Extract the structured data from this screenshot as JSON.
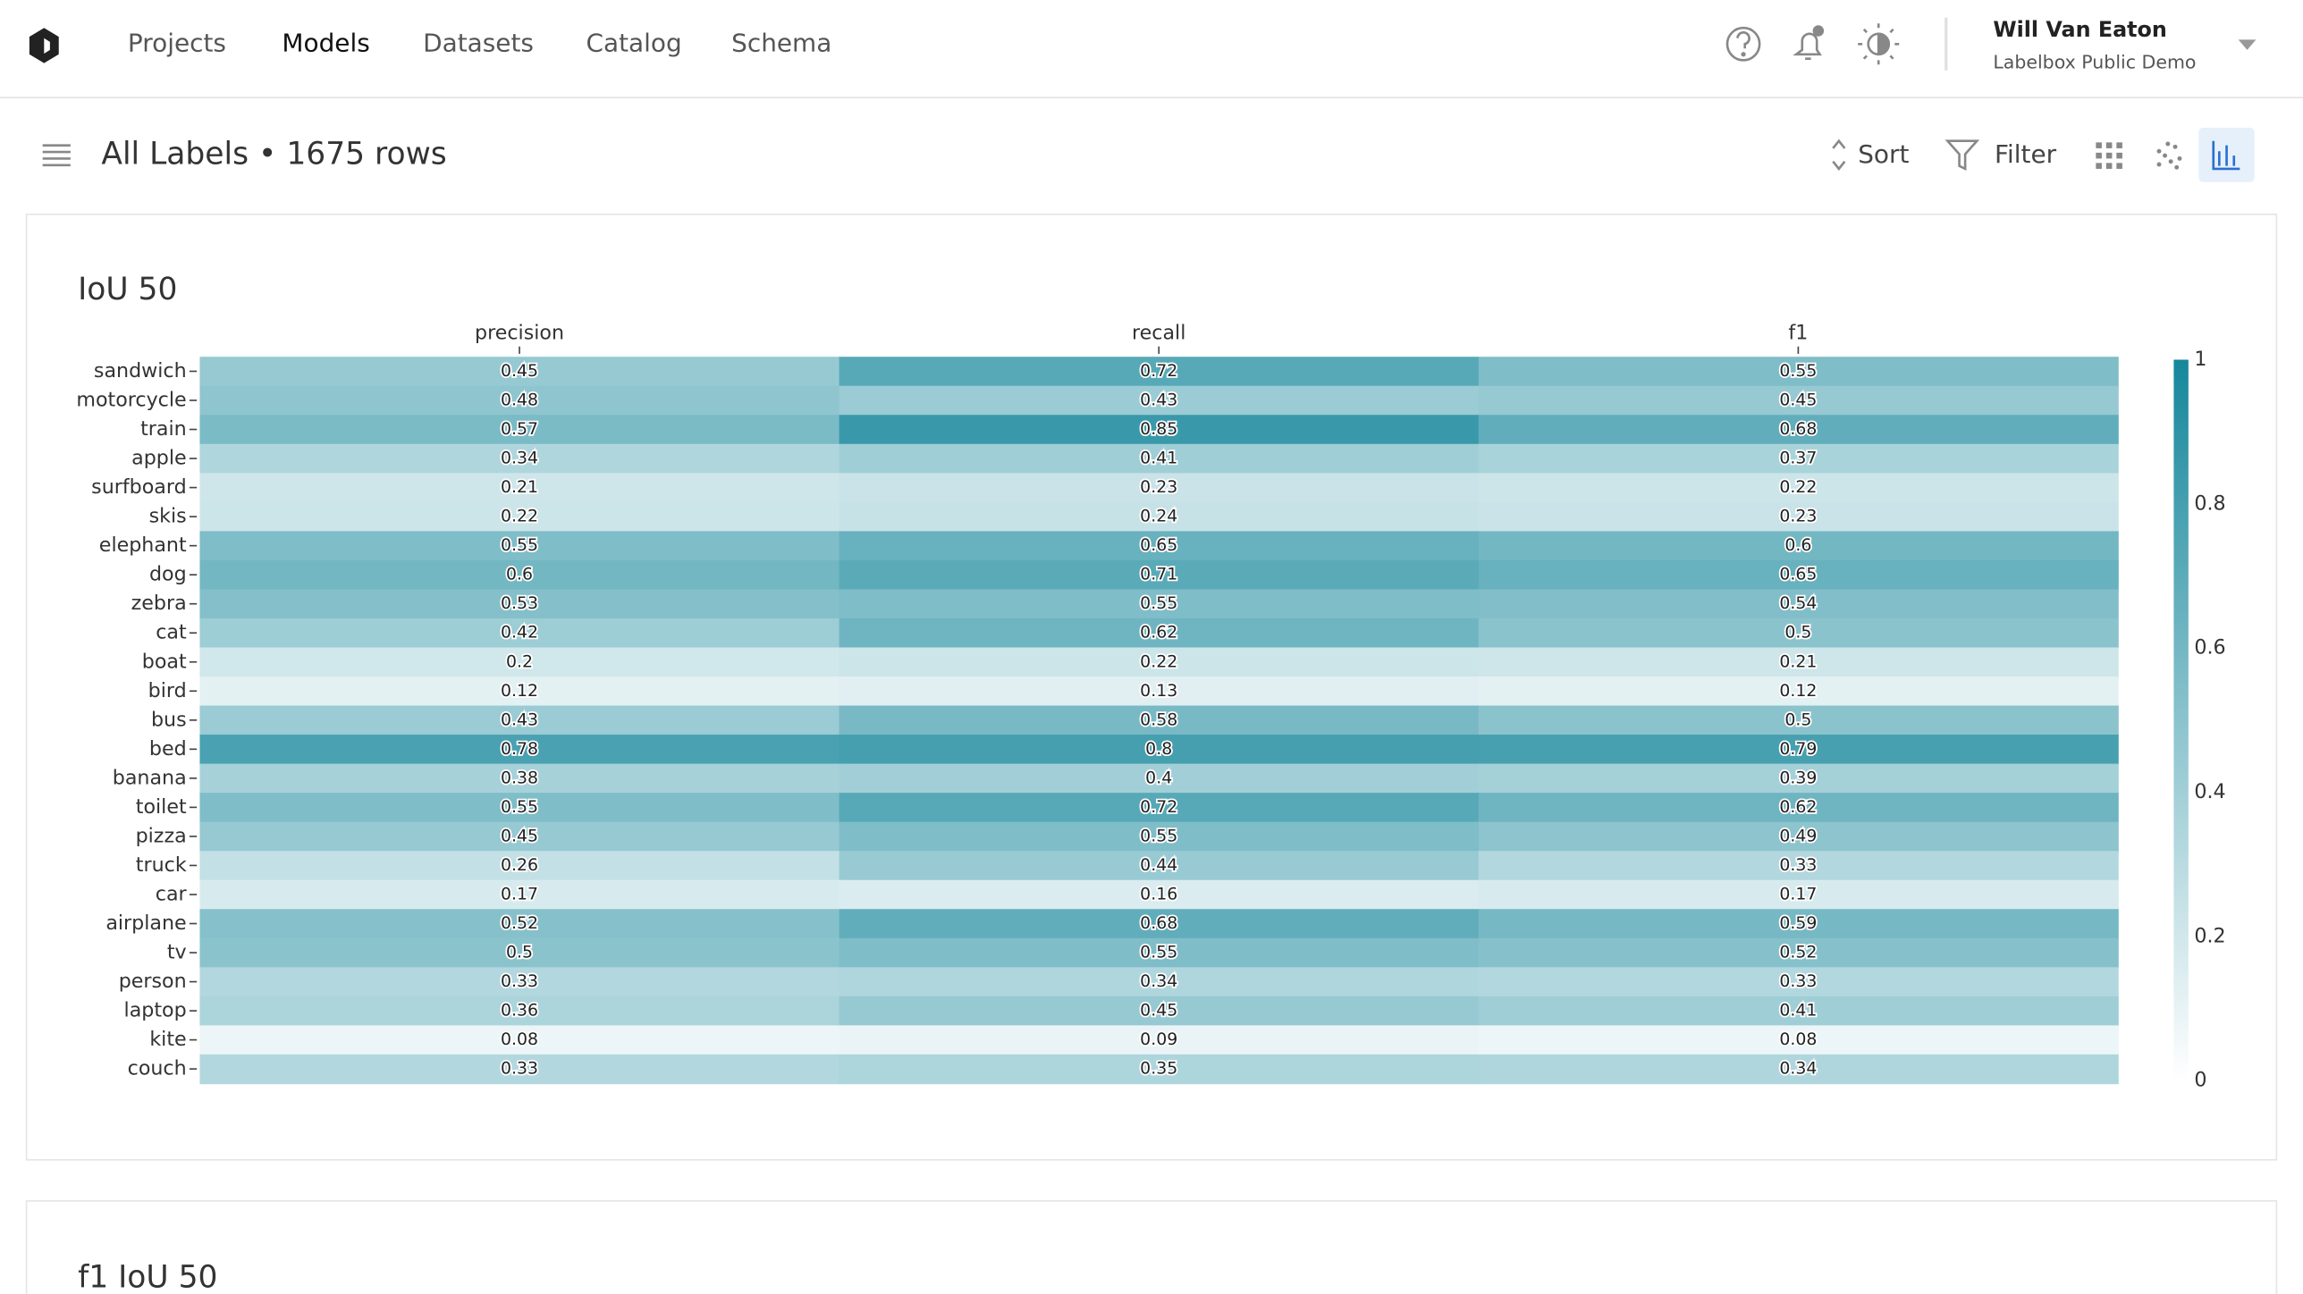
{
  "nav": {
    "items": [
      "Projects",
      "Models",
      "Datasets",
      "Catalog",
      "Schema"
    ],
    "active": 1
  },
  "user": {
    "name": "Will Van Eaton",
    "org": "Labelbox Public Demo"
  },
  "toolbar": {
    "title": "All Labels • 1675 rows",
    "sort": "Sort",
    "filter": "Filter"
  },
  "cards": [
    {
      "chart_data": {
        "type": "heatmap",
        "title": "IoU 50",
        "columns": [
          "precision",
          "recall",
          "f1"
        ],
        "rows": [
          "sandwich",
          "motorcycle",
          "train",
          "apple",
          "surfboard",
          "skis",
          "elephant",
          "dog",
          "zebra",
          "cat",
          "boat",
          "bird",
          "bus",
          "bed",
          "banana",
          "toilet",
          "pizza",
          "truck",
          "car",
          "airplane",
          "tv",
          "person",
          "laptop",
          "kite",
          "couch"
        ],
        "values": [
          [
            0.45,
            0.72,
            0.55
          ],
          [
            0.48,
            0.43,
            0.45
          ],
          [
            0.57,
            0.85,
            0.68
          ],
          [
            0.34,
            0.41,
            0.37
          ],
          [
            0.21,
            0.23,
            0.22
          ],
          [
            0.22,
            0.24,
            0.23
          ],
          [
            0.55,
            0.65,
            0.6
          ],
          [
            0.6,
            0.71,
            0.65
          ],
          [
            0.53,
            0.55,
            0.54
          ],
          [
            0.42,
            0.62,
            0.5
          ],
          [
            0.2,
            0.22,
            0.21
          ],
          [
            0.12,
            0.13,
            0.12
          ],
          [
            0.43,
            0.58,
            0.5
          ],
          [
            0.78,
            0.8,
            0.79
          ],
          [
            0.38,
            0.4,
            0.39
          ],
          [
            0.55,
            0.72,
            0.62
          ],
          [
            0.45,
            0.55,
            0.49
          ],
          [
            0.26,
            0.44,
            0.33
          ],
          [
            0.17,
            0.16,
            0.17
          ],
          [
            0.52,
            0.68,
            0.59
          ],
          [
            0.5,
            0.55,
            0.52
          ],
          [
            0.33,
            0.34,
            0.33
          ],
          [
            0.36,
            0.45,
            0.41
          ],
          [
            0.08,
            0.09,
            0.08
          ],
          [
            0.33,
            0.35,
            0.34
          ]
        ],
        "zlim": [
          0,
          1
        ],
        "zticks": [
          0,
          0.2,
          0.4,
          0.6,
          0.8,
          1
        ],
        "colorscale": [
          "#ffffff",
          "#16879b"
        ]
      }
    },
    {
      "chart_data": {
        "title": "f1 IoU 50"
      }
    }
  ]
}
